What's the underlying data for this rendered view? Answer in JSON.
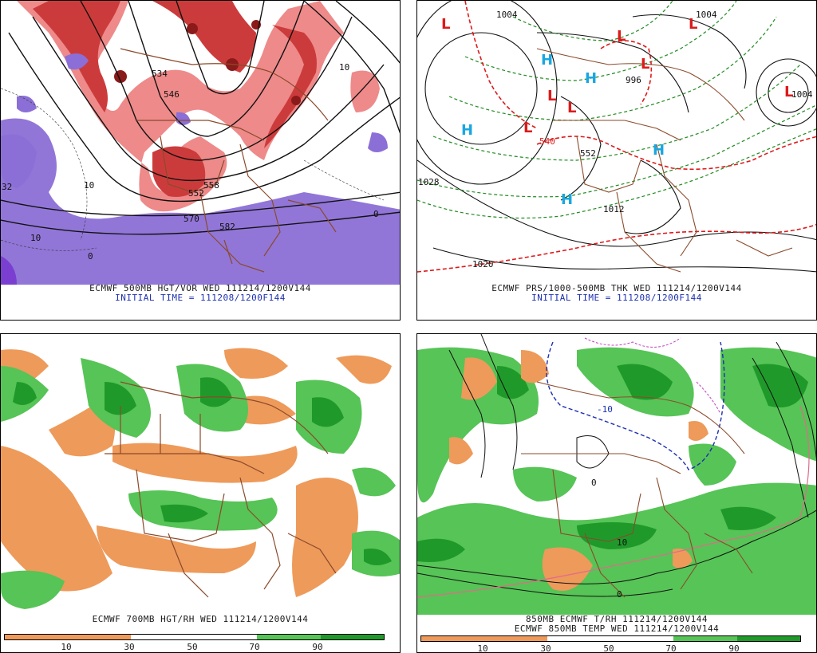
{
  "panels": {
    "p1": {
      "title_line": "ECMWF 500MB HGT/VOR WED 111214/1200V144",
      "init_line": "INITIAL TIME = 111208/1200F144",
      "labels": [
        "546",
        "552",
        "558",
        "570",
        "582",
        "534",
        "10",
        "10",
        "10",
        "0",
        "32",
        "0"
      ]
    },
    "p2": {
      "title_line": "ECMWF PRS/1000-500MB THK WED 111214/1200V144",
      "init_line": "INITIAL TIME = 111208/1200F144",
      "labels": [
        "1028",
        "1020",
        "1012",
        "1004",
        "1004",
        "540",
        "552",
        "996",
        "1004"
      ],
      "high_symbol": "H",
      "low_symbol": "L"
    },
    "p3": {
      "title_line": "ECMWF 700MB HGT/RH WED 111214/1200V144",
      "colorbar_ticks": [
        "10",
        "30",
        "50",
        "70",
        "90"
      ]
    },
    "p4": {
      "title_line": "850MB ECMWF T/RH 111214/1200V144",
      "title_line2": "ECMWF 850MB TEMP WED 111214/1200V144",
      "labels": [
        "-10",
        "10",
        "0",
        "0"
      ],
      "colorbar_ticks": [
        "10",
        "30",
        "50",
        "70",
        "90"
      ]
    }
  },
  "colors": {
    "vort_dark": "#8b1a1a",
    "vort_mid": "#cc3b3b",
    "vort_light": "#ee8a8a",
    "neg_vort": "#8b6fd6",
    "rh_dry": "#ee9a5a",
    "rh_moist_light": "#56c456",
    "rh_moist_dark": "#1f9a2a",
    "border": "#8b4a2b",
    "thk_red": "#dd1a1a",
    "thk_green": "#1f8a1f",
    "high_blue": "#1aa7e0",
    "low_red": "#dd1a1a",
    "caption_blue": "#1c2fb0"
  }
}
